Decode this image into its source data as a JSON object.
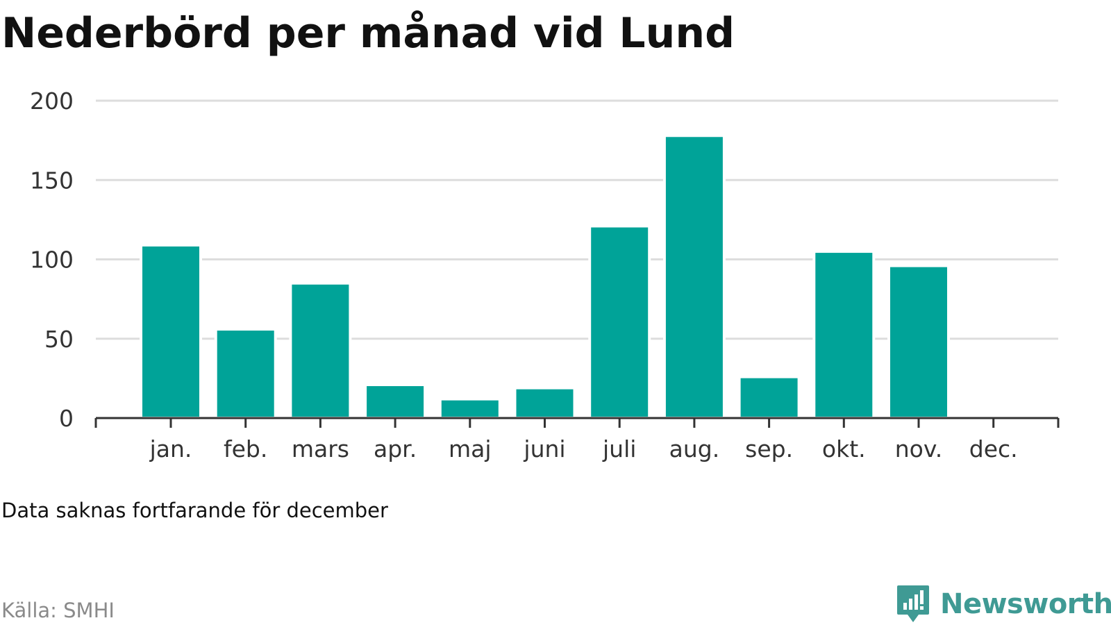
{
  "title": "Nederbörd per månad vid Lund",
  "note": "Data saknas fortfarande för december",
  "source": "Källa: SMHI",
  "brand": {
    "name": "Newsworthy",
    "icon": "newsworthy-logo-icon",
    "color": "#3f9a94"
  },
  "colors": {
    "bar": "#00a398",
    "grid": "#dddddd",
    "axis": "#333333"
  },
  "chart_data": {
    "type": "bar",
    "title": "Nederbörd per månad vid Lund",
    "xlabel": "",
    "ylabel": "",
    "categories": [
      "jan.",
      "feb.",
      "mars",
      "apr.",
      "maj",
      "juni",
      "juli",
      "aug.",
      "sep.",
      "okt.",
      "nov.",
      "dec."
    ],
    "values": [
      109,
      56,
      85,
      21,
      12,
      19,
      121,
      178,
      26,
      105,
      96,
      null
    ],
    "ylim": [
      0,
      200
    ],
    "yticks": [
      0,
      50,
      100,
      150,
      200
    ],
    "grid": true,
    "legend": "none"
  }
}
